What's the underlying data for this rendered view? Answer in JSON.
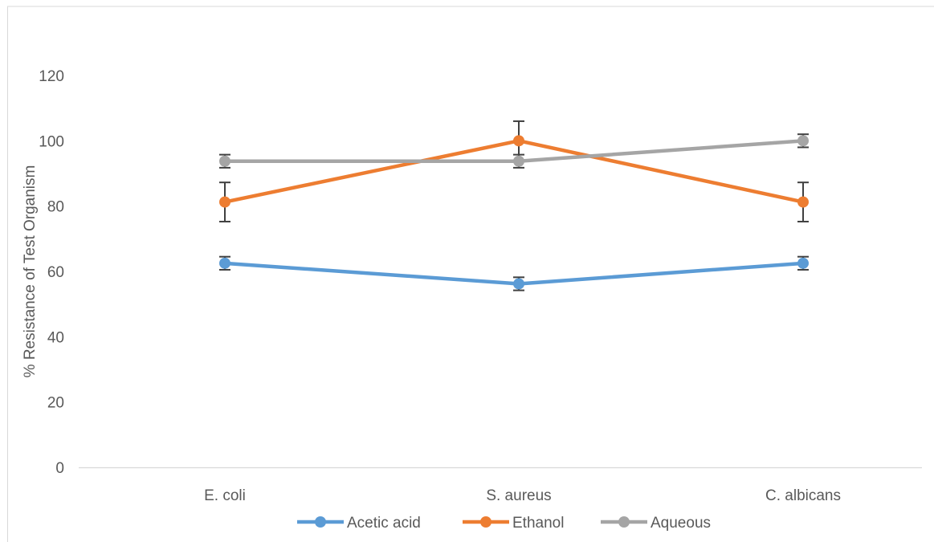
{
  "chart_data": {
    "type": "line",
    "title": "",
    "xlabel": "",
    "ylabel": "% Resistance of Test Organism",
    "categories": [
      "E. coli",
      "S. aureus",
      "C. albicans"
    ],
    "ylim": [
      0,
      120
    ],
    "yticks": [
      0,
      20,
      40,
      60,
      80,
      100,
      120
    ],
    "grid": false,
    "legend_position": "bottom",
    "series": [
      {
        "name": "Acetic acid",
        "color": "#5b9bd5",
        "values": [
          62.5,
          56.2,
          62.5
        ],
        "errors": [
          2,
          2,
          2
        ]
      },
      {
        "name": "Ethanol",
        "color": "#ed7d31",
        "values": [
          81.25,
          100,
          81.25
        ],
        "errors": [
          6,
          6,
          6
        ]
      },
      {
        "name": "Aqueous",
        "color": "#a5a5a5",
        "values": [
          93.75,
          93.75,
          100
        ],
        "errors": [
          2,
          2,
          2
        ]
      }
    ]
  }
}
